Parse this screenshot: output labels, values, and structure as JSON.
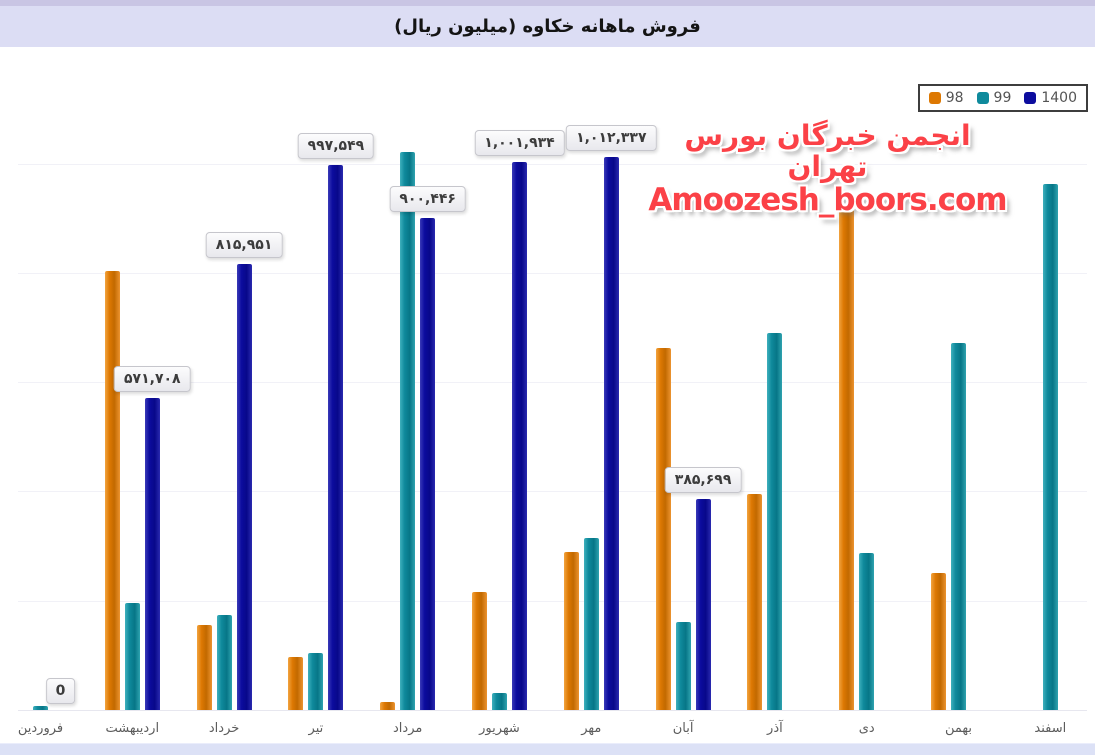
{
  "title": "فروش ماهانه خکاوه (میلیون ریال)",
  "watermark": {
    "line1": "انجمن خبرگان بورس تهران",
    "line2": "Amoozesh_boors.com"
  },
  "legend": [
    {
      "label": "98",
      "color": "#dd7802"
    },
    {
      "label": "99",
      "color": "#0f8a9c"
    },
    {
      "label": "1400",
      "color": "#0c0c9e"
    }
  ],
  "chart_data": {
    "type": "bar",
    "title": "فروش ماهانه خکاوه (میلیون ریال)",
    "xlabel": "",
    "ylabel": "",
    "ylim": [
      0,
      1100000
    ],
    "grid": true,
    "gridline_step": 200000,
    "legend_position": "top-right",
    "categories": [
      "فروردین",
      "اردیبهشت",
      "خرداد",
      "تیر",
      "مرداد",
      "شهریور",
      "مهر",
      "آبان",
      "آذر",
      "دی",
      "بهمن",
      "اسفند"
    ],
    "series": [
      {
        "name": "98",
        "color": "#dd7802",
        "values": [
          0,
          803000,
          156000,
          97000,
          15000,
          216000,
          289000,
          662000,
          395000,
          926000,
          251000,
          null
        ]
      },
      {
        "name": "99",
        "color": "#0f8a9c",
        "values": [
          7000,
          196000,
          174000,
          104000,
          1021000,
          31000,
          315000,
          161000,
          690000,
          287000,
          672000,
          963000
        ]
      },
      {
        "name": "1400",
        "color": "#0c0c9e",
        "values": [
          0,
          571708,
          815951,
          997549,
          900446,
          1001934,
          1012337,
          385699,
          null,
          null,
          null,
          null
        ]
      }
    ],
    "data_labels": {
      "series": "1400",
      "values": [
        "0",
        "۵۷۱,۷۰۸",
        "۸۱۵,۹۵۱",
        "۹۹۷,۵۴۹",
        "۹۰۰,۴۴۶",
        "۱,۰۰۱,۹۳۴",
        "۱,۰۱۲,۳۳۷",
        "۳۸۵,۶۹۹",
        null,
        null,
        null,
        null
      ]
    },
    "note_estimated": "unlabeled bar values estimated from pixel heights"
  }
}
